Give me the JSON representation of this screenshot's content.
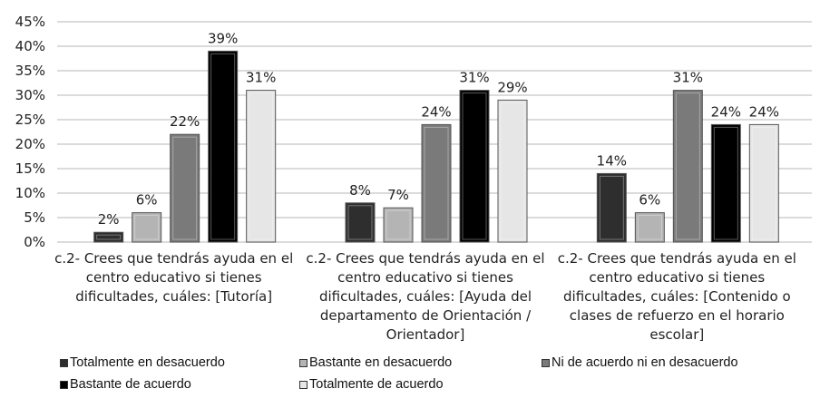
{
  "chart_data": {
    "type": "bar",
    "ylim": [
      0,
      45
    ],
    "yticks": [
      "0%",
      "5%",
      "10%",
      "15%",
      "20%",
      "25%",
      "30%",
      "35%",
      "40%",
      "45%"
    ],
    "grid": true,
    "legend_placement": "bottom",
    "categories": [
      [
        "c.2- Crees que tendrás ayuda en el",
        "centro educativo si tienes",
        "dificultades, cuáles: [Tutoría]"
      ],
      [
        "c.2- Crees que tendrás ayuda en el",
        "centro educativo si tienes",
        "dificultades, cuáles: [Ayuda del",
        "departamento de Orientación /",
        "Orientador]"
      ],
      [
        "c.2- Crees que tendrás ayuda en el",
        "centro educativo si tienes",
        "dificultades, cuáles: [Contenido o",
        "clases de refuerzo en el horario",
        "escolar]"
      ]
    ],
    "series": [
      {
        "name": "Totalmente en desacuerdo",
        "color": "#2e2e2e",
        "values": [
          2,
          8,
          14
        ],
        "labels": [
          "2%",
          "8%",
          "14%"
        ]
      },
      {
        "name": "Bastante en desacuerdo",
        "color": "#b4b4b4",
        "values": [
          6,
          7,
          6
        ],
        "labels": [
          "6%",
          "7%",
          "6%"
        ]
      },
      {
        "name": "Ni de acuerdo ni en desacuerdo",
        "color": "#7a7a7a",
        "values": [
          22,
          24,
          31
        ],
        "labels": [
          "22%",
          "24%",
          "31%"
        ]
      },
      {
        "name": "Bastante de acuerdo",
        "color": "#000000",
        "values": [
          39,
          31,
          24
        ],
        "labels": [
          "39%",
          "31%",
          "24%"
        ]
      },
      {
        "name": "Totalmente de acuerdo",
        "color": "#e6e6e6",
        "values": [
          31,
          29,
          24
        ],
        "labels": [
          "31%",
          "29%",
          "24%"
        ]
      }
    ]
  }
}
